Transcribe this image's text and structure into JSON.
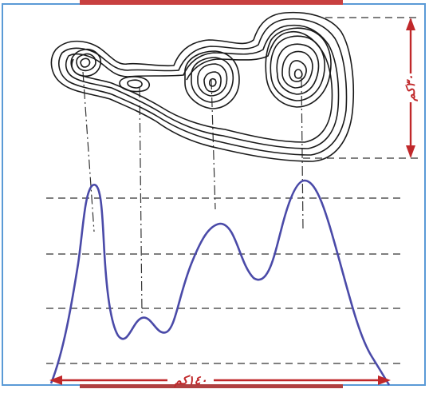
{
  "diagram": {
    "colors": {
      "frame_border": "#5a9ad6",
      "top_bar": "#c84040",
      "bottom_bar": "#b04040",
      "contour_ink": "#1a1a1a",
      "profile_line": "#4a4aa8",
      "dimension_red": "#c0282a",
      "guide_dashes": "#333333"
    },
    "contour_map": {
      "icon": "contour-lines-icon"
    },
    "profile": {
      "icon": "elevation-profile-curve"
    },
    "width_dimension": {
      "label": "١٤٠كم"
    },
    "height_dimension": {
      "label": "٣٠كم"
    }
  }
}
